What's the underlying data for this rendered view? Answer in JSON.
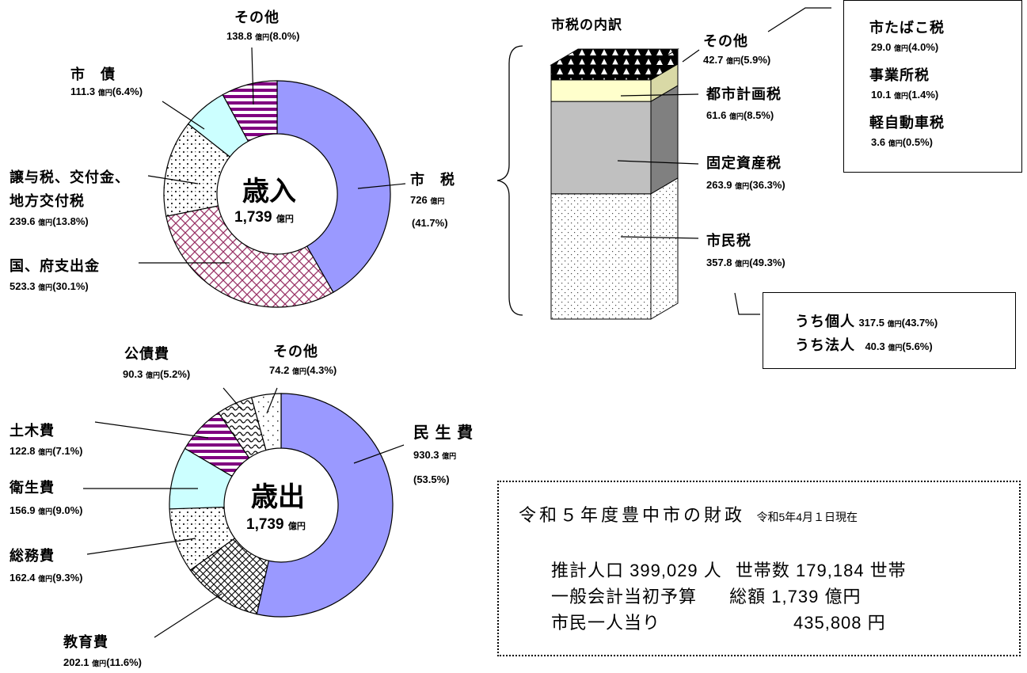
{
  "unit": "億円",
  "revenue": {
    "title": "歳入",
    "total": "1,739",
    "labels": {
      "other": {
        "name": "その他",
        "amount": "138.8",
        "pct": "(8.0%)"
      },
      "bond": {
        "name": "市　債",
        "amount": "111.3",
        "pct": "(6.4%)"
      },
      "transfer": {
        "name1": "譲与税、交付金、",
        "name2": "地方交付税",
        "amount": "239.6",
        "pct": "(13.8%)"
      },
      "national": {
        "name": "国、府支出金",
        "amount": "523.3",
        "pct": "(30.1%)"
      },
      "city_tax": {
        "name": "市　税",
        "amount": "726",
        "pct": "(41.7%)"
      }
    }
  },
  "expenditure": {
    "title": "歳出",
    "total": "1,739",
    "labels": {
      "debt": {
        "name": "公債費",
        "amount": "90.3",
        "pct": "(5.2%)"
      },
      "other": {
        "name": "その他",
        "amount": "74.2",
        "pct": "(4.3%)"
      },
      "civil": {
        "name": "土木費",
        "amount": "122.8",
        "pct": "(7.1%)"
      },
      "health": {
        "name": "衛生費",
        "amount": "156.9",
        "pct": "(9.0%)"
      },
      "general": {
        "name": "総務費",
        "amount": "162.4",
        "pct": "(9.3%)"
      },
      "education": {
        "name": "教育費",
        "amount": "202.1",
        "pct": "(11.6%)"
      },
      "welfare": {
        "name": "民 生 費",
        "amount": "930.3",
        "pct": "(53.5%)"
      }
    }
  },
  "city_tax_breakdown": {
    "title": "市税の内訳",
    "items": {
      "other": {
        "name": "その他",
        "amount": "42.7",
        "pct": "(5.9%)"
      },
      "planning": {
        "name": "都市計画税",
        "amount": "61.6",
        "pct": "(8.5%)"
      },
      "property": {
        "name": "固定資産税",
        "amount": "263.9",
        "pct": "(36.3%)"
      },
      "resident": {
        "name": "市民税",
        "amount": "357.8",
        "pct": "(49.3%)"
      }
    },
    "other_detail": {
      "tobacco": {
        "name": "市たばこ税",
        "amount": "29.0",
        "pct": "(4.0%)"
      },
      "business": {
        "name": "事業所税",
        "amount": "10.1",
        "pct": "(1.4%)"
      },
      "light_vehicle": {
        "name": "軽自動車税",
        "amount": "3.6",
        "pct": "(0.5%)"
      }
    },
    "resident_detail": {
      "individual": {
        "name": "うち個人",
        "amount": "317.5",
        "pct": "(43.7%)"
      },
      "corporate": {
        "name": "うち法人",
        "amount": "40.3",
        "pct": "(5.6%)"
      }
    }
  },
  "info": {
    "heading": "令和５年度豊中市の財政",
    "date": "令和5年4月１日現在",
    "population_label": "推計人口",
    "population": "399,029 人",
    "households_label": "世帯数",
    "households": "179,184 世帯",
    "budget_label": "一般会計当初予算",
    "budget_total_label": "総額",
    "budget_total": "1,739 億円",
    "per_capita_label": "市民一人当り",
    "per_capita": "435,808 円"
  },
  "chart_data": [
    {
      "type": "pie",
      "title": "歳入",
      "categories": [
        "市税",
        "国、府支出金",
        "譲与税、交付金、地方交付税",
        "市債",
        "その他"
      ],
      "values": [
        726,
        523.3,
        239.6,
        111.3,
        138.8
      ],
      "percent": [
        41.7,
        30.1,
        13.8,
        6.4,
        8.0
      ],
      "colors": [
        "#9a99ff",
        "#993366",
        "#555555",
        "#ccffff",
        "#800080"
      ]
    },
    {
      "type": "pie",
      "title": "歳出",
      "categories": [
        "民生費",
        "教育費",
        "総務費",
        "衛生費",
        "土木費",
        "公債費",
        "その他"
      ],
      "values": [
        930.3,
        202.1,
        162.4,
        156.9,
        122.8,
        90.3,
        74.2
      ],
      "percent": [
        53.5,
        11.6,
        9.3,
        9.0,
        7.1,
        5.2,
        4.3
      ],
      "colors": [
        "#9a99ff",
        "#000000",
        "#555555",
        "#ccffff",
        "#800080",
        "#333333",
        "#333333"
      ]
    },
    {
      "type": "bar",
      "title": "市税の内訳",
      "categories": [
        "市民税",
        "固定資産税",
        "都市計画税",
        "その他"
      ],
      "values": [
        357.8,
        263.9,
        61.6,
        42.7
      ],
      "percent": [
        49.3,
        36.3,
        8.5,
        5.9
      ],
      "colors": [
        "#ffffff",
        "#c0c0c0",
        "#ffffcc",
        "#000000"
      ]
    }
  ]
}
